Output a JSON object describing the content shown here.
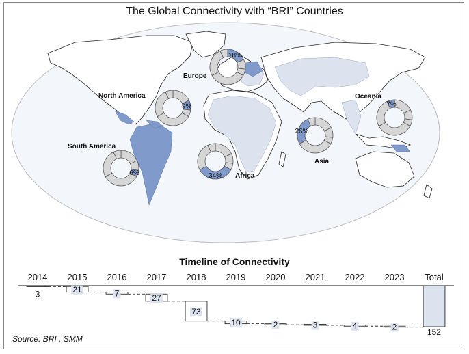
{
  "title": "The Global Connectivity with “BRI” Countries",
  "source": "Source:  BRI ,  SMM",
  "chart_data": [
    {
      "type": "pie",
      "title": "",
      "regions": [
        {
          "name": "Europe",
          "value": 18,
          "label": "18%"
        },
        {
          "name": "North America",
          "value": 9,
          "label": "9%"
        },
        {
          "name": "South America",
          "value": 6,
          "label": "6%"
        },
        {
          "name": "Africa",
          "value": 34,
          "label": "34%"
        },
        {
          "name": "Asia",
          "value": 26,
          "label": "26%"
        },
        {
          "name": "Oceania",
          "value": 7,
          "label": "7%"
        }
      ]
    },
    {
      "type": "bar",
      "subtype": "waterfall",
      "title": "Timeline of Connectivity",
      "categories": [
        "2014",
        "2015",
        "2016",
        "2017",
        "2018",
        "2019",
        "2020",
        "2021",
        "2022",
        "2023",
        "Total"
      ],
      "values": [
        3,
        21,
        7,
        27,
        73,
        10,
        2,
        3,
        4,
        2,
        152
      ],
      "value_labels": [
        "3",
        "21",
        "7",
        "27",
        "73",
        "10",
        "2",
        "3",
        "4",
        "2",
        "152"
      ],
      "ylim": [
        0,
        152
      ]
    }
  ]
}
